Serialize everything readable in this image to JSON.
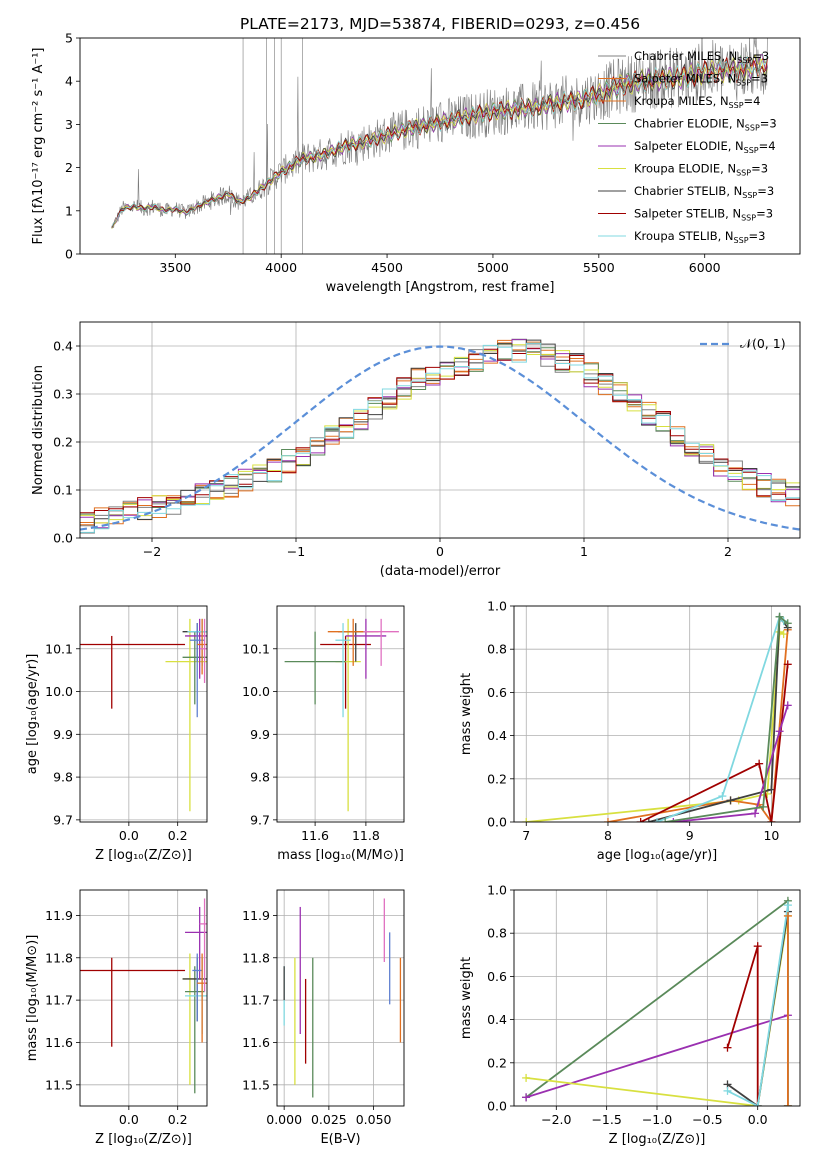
{
  "figure": {
    "title": "PLATE=2173, MJD=53874, FIBERID=0293, z=0.456"
  },
  "colors": {
    "chabrier_miles": "#808080",
    "salpeter_miles": "#e07020",
    "kroupa_miles": "#e07020",
    "chabrier_elodie": "#5a8a5a",
    "salpeter_elodie": "#9a30b0",
    "kroupa_elodie": "#d8e040",
    "chabrier_stelib": "#404040",
    "salpeter_stelib": "#a00000",
    "kroupa_stelib": "#80d8e0",
    "normal": "#5b8fd8",
    "pink": "#e070c0",
    "blue": "#6080d0",
    "grid": "#b0b0b0"
  },
  "chart_data": [
    {
      "id": "spectrum",
      "type": "line",
      "xlabel": "wavelength [Angstrom, rest frame]",
      "ylabel": "Flux [fλ10⁻¹⁷ erg cm⁻² s⁻¹ A⁻¹]",
      "xlim": [
        3050,
        6450
      ],
      "ylim": [
        0,
        5
      ],
      "xticks": [
        3500,
        4000,
        4500,
        5000,
        5500,
        6000
      ],
      "yticks": [
        0,
        1,
        2,
        3,
        4,
        5
      ],
      "grid": false,
      "legend": "right",
      "model_x": [
        3200,
        3250,
        3300,
        3350,
        3400,
        3450,
        3500,
        3550,
        3600,
        3650,
        3700,
        3750,
        3800,
        3850,
        3900,
        3950,
        4000,
        4100,
        4200,
        4300,
        4400,
        4500,
        4600,
        4700,
        4800,
        4900,
        5000,
        5100,
        5200,
        5300,
        5400,
        5500,
        5600,
        5700,
        5800,
        5900,
        6000,
        6100,
        6200,
        6300
      ],
      "model_y": [
        0.6,
        1.05,
        1.1,
        1.05,
        1.1,
        1.0,
        1.05,
        0.95,
        1.1,
        1.2,
        1.3,
        1.4,
        1.2,
        1.3,
        1.5,
        1.7,
        1.9,
        2.2,
        2.3,
        2.5,
        2.6,
        2.75,
        2.9,
        3.0,
        3.1,
        3.2,
        3.3,
        3.35,
        3.4,
        3.5,
        3.55,
        3.7,
        3.9,
        4.0,
        4.05,
        4.1,
        4.2,
        4.25,
        4.3,
        4.4
      ],
      "series": [
        {
          "name": "Chabrier MILES, N_SSP=3",
          "label": "Chabrier MILES, N",
          "sub": "SSP",
          "suffix": "=3"
        },
        {
          "name": "Salpeter MILES, N_SSP=3",
          "label": "Salpeter MILES, N",
          "sub": "SSP",
          "suffix": "=3"
        },
        {
          "name": "Kroupa MILES, N_SSP=4",
          "label": "Kroupa MILES, N",
          "sub": "SSP",
          "suffix": "=4"
        },
        {
          "name": "Chabrier ELODIE, N_SSP=3",
          "label": "Chabrier ELODIE, N",
          "sub": "SSP",
          "suffix": "=3"
        },
        {
          "name": "Salpeter ELODIE, N_SSP=4",
          "label": "Salpeter ELODIE, N",
          "sub": "SSP",
          "suffix": "=4"
        },
        {
          "name": "Kroupa ELODIE, N_SSP=3",
          "label": "Kroupa ELODIE, N",
          "sub": "SSP",
          "suffix": "=3"
        },
        {
          "name": "Chabrier STELIB, N_SSP=3",
          "label": "Chabrier STELIB, N",
          "sub": "SSP",
          "suffix": "=3"
        },
        {
          "name": "Salpeter STELIB, N_SSP=3",
          "label": "Salpeter STELIB, N",
          "sub": "SSP",
          "suffix": "=3"
        },
        {
          "name": "Kroupa STELIB, N_SSP=3",
          "label": "Kroupa STELIB, N",
          "sub": "SSP",
          "suffix": "=3"
        }
      ]
    },
    {
      "id": "residuals",
      "type": "line",
      "xlabel": "(data-model)/error",
      "ylabel": "Normed distribution",
      "xlim": [
        -2.5,
        2.5
      ],
      "ylim": [
        0,
        0.45
      ],
      "xticks": [
        -2,
        -1,
        0,
        1,
        2
      ],
      "yticks": [
        0.0,
        0.1,
        0.2,
        0.3,
        0.4
      ],
      "grid": true,
      "legend": "top-right",
      "legend_label": "𝒩(0, 1)",
      "bin_width": 0.1,
      "base_hist": [
        0.03,
        0.04,
        0.05,
        0.055,
        0.06,
        0.065,
        0.07,
        0.08,
        0.09,
        0.1,
        0.11,
        0.12,
        0.13,
        0.14,
        0.16,
        0.17,
        0.19,
        0.21,
        0.23,
        0.25,
        0.27,
        0.29,
        0.31,
        0.33,
        0.34,
        0.35,
        0.36,
        0.37,
        0.38,
        0.39,
        0.39,
        0.39,
        0.38,
        0.37,
        0.36,
        0.34,
        0.32,
        0.3,
        0.28,
        0.26,
        0.24,
        0.21,
        0.19,
        0.17,
        0.15,
        0.14,
        0.12,
        0.11,
        0.1,
        0.09
      ]
    },
    {
      "id": "age-vs-z",
      "type": "scatter",
      "xlabel": "Z [log₁₀(Z/Z⊙)]",
      "ylabel": "age  [log₁₀(age/yr)]",
      "xlim": [
        -0.2,
        0.32
      ],
      "ylim": [
        9.695,
        10.2
      ],
      "xticks": [
        0.0,
        0.2
      ],
      "yticks": [
        9.7,
        9.8,
        9.9,
        10.0,
        10.1
      ],
      "grid": true,
      "points": [
        {
          "x": -0.07,
          "y": 10.11,
          "xerr": 0.3,
          "ylo": 9.96,
          "yhi": 10.13,
          "color": "salpeter_stelib"
        },
        {
          "x": 0.25,
          "y": 10.07,
          "xerr": 0.1,
          "ylo": 9.72,
          "yhi": 10.17,
          "color": "kroupa_elodie"
        },
        {
          "x": 0.27,
          "y": 10.08,
          "xerr": 0.05,
          "ylo": 9.97,
          "yhi": 10.14,
          "color": "chabrier_elodie"
        },
        {
          "x": 0.28,
          "y": 10.14,
          "xerr": 0.06,
          "ylo": 10.07,
          "yhi": 10.16,
          "color": "chabrier_stelib"
        },
        {
          "x": 0.29,
          "y": 10.13,
          "xerr": 0.06,
          "ylo": 10.03,
          "yhi": 10.17,
          "color": "salpeter_elodie"
        },
        {
          "x": 0.3,
          "y": 10.14,
          "xerr": 0.06,
          "ylo": 10.06,
          "yhi": 10.17,
          "color": "kroupa_stelib"
        },
        {
          "x": 0.28,
          "y": 10.12,
          "xerr": 0.03,
          "ylo": 9.94,
          "yhi": 10.16,
          "color": "blue"
        },
        {
          "x": 0.3,
          "y": 10.11,
          "xerr": 0.02,
          "ylo": 10.04,
          "yhi": 10.17,
          "color": "salpeter_miles"
        },
        {
          "x": 0.31,
          "y": 10.1,
          "xerr": 0.02,
          "ylo": 10.02,
          "yhi": 10.17,
          "color": "pink"
        }
      ]
    },
    {
      "id": "age-vs-mass",
      "type": "scatter",
      "xlabel": "mass [log₁₀(M/M⊙)]",
      "ylabel": "",
      "xlim": [
        11.45,
        11.95
      ],
      "ylim": [
        9.695,
        10.2
      ],
      "xticks": [
        11.6,
        11.8
      ],
      "yticks": [
        9.7,
        9.8,
        9.9,
        10.0,
        10.1
      ],
      "grid": true,
      "points": [
        {
          "x": 11.72,
          "y": 10.11,
          "xerr": 0.1,
          "ylo": 9.96,
          "yhi": 10.13,
          "color": "salpeter_stelib"
        },
        {
          "x": 11.73,
          "y": 10.07,
          "xerr": 0.05,
          "ylo": 9.72,
          "yhi": 10.17,
          "color": "kroupa_elodie"
        },
        {
          "x": 11.6,
          "y": 10.07,
          "xerr": 0.12,
          "ylo": 9.97,
          "yhi": 10.14,
          "color": "chabrier_elodie"
        },
        {
          "x": 11.76,
          "y": 10.14,
          "xerr": 0.07,
          "ylo": 10.07,
          "yhi": 10.16,
          "color": "chabrier_stelib"
        },
        {
          "x": 11.8,
          "y": 10.13,
          "xerr": 0.08,
          "ylo": 10.03,
          "yhi": 10.17,
          "color": "salpeter_elodie"
        },
        {
          "x": 11.75,
          "y": 10.14,
          "xerr": 0.1,
          "ylo": 10.06,
          "yhi": 10.17,
          "color": "salpeter_miles"
        },
        {
          "x": 11.86,
          "y": 10.14,
          "xerr": 0.07,
          "ylo": 10.06,
          "yhi": 10.17,
          "color": "pink"
        },
        {
          "x": 11.71,
          "y": 10.12,
          "xerr": 0.03,
          "ylo": 9.94,
          "yhi": 10.16,
          "color": "kroupa_stelib"
        }
      ]
    },
    {
      "id": "weight-vs-age",
      "type": "line",
      "xlabel": "age  [log₁₀(age/yr)]",
      "ylabel": "mass weight",
      "xlim": [
        6.85,
        10.35
      ],
      "ylim": [
        0,
        1
      ],
      "xticks": [
        7,
        8,
        9,
        10
      ],
      "yticks": [
        0.0,
        0.2,
        0.4,
        0.6,
        0.8,
        1.0
      ],
      "grid": true,
      "series": [
        {
          "color": "kroupa_elodie",
          "x": [
            7.0,
            9.6,
            9.95,
            10.1,
            10.15
          ],
          "y": [
            0.0,
            0.1,
            0.13,
            0.88,
            0.87
          ]
        },
        {
          "color": "salpeter_miles",
          "x": [
            8.0,
            9.5,
            9.85,
            10.0,
            10.2
          ],
          "y": [
            0.0,
            0.1,
            0.08,
            0.0,
            0.89
          ]
        },
        {
          "color": "chabrier_stelib",
          "x": [
            8.5,
            9.5,
            10.0,
            10.1,
            10.2
          ],
          "y": [
            0.0,
            0.1,
            0.15,
            0.95,
            0.9
          ]
        },
        {
          "color": "salpeter_stelib",
          "x": [
            8.4,
            9.85,
            10.0,
            10.2
          ],
          "y": [
            0.0,
            0.27,
            0.0,
            0.73
          ]
        },
        {
          "color": "salpeter_elodie",
          "x": [
            8.8,
            9.8,
            10.1,
            10.2
          ],
          "y": [
            0.0,
            0.04,
            0.42,
            0.54
          ]
        },
        {
          "color": "kroupa_stelib",
          "x": [
            8.6,
            9.4,
            10.1,
            10.15
          ],
          "y": [
            0.0,
            0.12,
            0.95,
            0.93
          ]
        },
        {
          "color": "chabrier_elodie",
          "x": [
            8.7,
            9.9,
            10.1,
            10.2
          ],
          "y": [
            0.0,
            0.07,
            0.95,
            0.92
          ]
        }
      ]
    },
    {
      "id": "mass-vs-z",
      "type": "scatter",
      "xlabel": "Z [log₁₀(Z/Z⊙)]",
      "ylabel": "mass [log₁₀(M/M⊙)]",
      "xlim": [
        -0.2,
        0.32
      ],
      "ylim": [
        11.45,
        11.96
      ],
      "xticks": [
        0.0,
        0.2
      ],
      "yticks": [
        11.5,
        11.6,
        11.7,
        11.8,
        11.9
      ],
      "grid": true,
      "points": [
        {
          "x": -0.07,
          "y": 11.77,
          "xerr": 0.3,
          "ylo": 11.59,
          "yhi": 11.8,
          "color": "salpeter_stelib"
        },
        {
          "x": 0.25,
          "y": 11.75,
          "xerr": 0.03,
          "ylo": 11.5,
          "yhi": 11.81,
          "color": "kroupa_elodie"
        },
        {
          "x": 0.27,
          "y": 11.72,
          "xerr": 0.04,
          "ylo": 11.48,
          "yhi": 11.78,
          "color": "chabrier_elodie"
        },
        {
          "x": 0.28,
          "y": 11.75,
          "xerr": 0.06,
          "ylo": 11.65,
          "yhi": 11.8,
          "color": "chabrier_stelib"
        },
        {
          "x": 0.29,
          "y": 11.86,
          "xerr": 0.06,
          "ylo": 11.75,
          "yhi": 11.92,
          "color": "salpeter_elodie"
        },
        {
          "x": 0.3,
          "y": 11.71,
          "xerr": 0.07,
          "ylo": 11.62,
          "yhi": 11.8,
          "color": "kroupa_stelib"
        },
        {
          "x": 0.28,
          "y": 11.77,
          "xerr": 0.02,
          "ylo": 11.65,
          "yhi": 11.81,
          "color": "blue"
        },
        {
          "x": 0.3,
          "y": 11.74,
          "xerr": 0.02,
          "ylo": 11.6,
          "yhi": 11.81,
          "color": "salpeter_miles"
        },
        {
          "x": 0.31,
          "y": 11.88,
          "xerr": 0.02,
          "ylo": 11.72,
          "yhi": 11.94,
          "color": "pink"
        }
      ]
    },
    {
      "id": "mass-vs-ebv",
      "type": "scatter",
      "xlabel": "E(B-V)",
      "ylabel": "",
      "xlim": [
        -0.004,
        0.067
      ],
      "ylim": [
        11.45,
        11.96
      ],
      "xticks": [
        0.0,
        0.025,
        0.05
      ],
      "tick_labels": [
        "0.000",
        "0.025",
        "0.050"
      ],
      "yticks": [
        11.5,
        11.6,
        11.7,
        11.8,
        11.9
      ],
      "grid": true,
      "points": [
        {
          "x": 0.0,
          "ylo": 11.64,
          "yhi": 11.78,
          "color": "kroupa_stelib"
        },
        {
          "x": 0.0,
          "ylo": 11.7,
          "yhi": 11.78,
          "color": "chabrier_stelib"
        },
        {
          "x": 0.006,
          "ylo": 11.5,
          "yhi": 11.8,
          "color": "kroupa_elodie"
        },
        {
          "x": 0.009,
          "ylo": 11.62,
          "yhi": 11.92,
          "color": "salpeter_elodie"
        },
        {
          "x": 0.012,
          "ylo": 11.55,
          "yhi": 11.75,
          "color": "salpeter_stelib"
        },
        {
          "x": 0.016,
          "ylo": 11.47,
          "yhi": 11.8,
          "color": "chabrier_elodie"
        },
        {
          "x": 0.056,
          "ylo": 11.79,
          "yhi": 11.94,
          "color": "pink"
        },
        {
          "x": 0.059,
          "ylo": 11.69,
          "yhi": 11.86,
          "color": "blue"
        },
        {
          "x": 0.065,
          "ylo": 11.6,
          "yhi": 11.8,
          "color": "salpeter_miles"
        }
      ]
    },
    {
      "id": "weight-vs-z",
      "type": "line",
      "xlabel": "Z [log₁₀(Z/Z⊙)]",
      "ylabel": "mass weight",
      "xlim": [
        -2.42,
        0.42
      ],
      "ylim": [
        0,
        1
      ],
      "xticks": [
        -2.0,
        -1.5,
        -1.0,
        -0.5,
        0.0
      ],
      "yticks": [
        0.0,
        0.2,
        0.4,
        0.6,
        0.8,
        1.0
      ],
      "grid": true,
      "series": [
        {
          "color": "chabrier_elodie",
          "x": [
            -2.3,
            0.3,
            0.3
          ],
          "y": [
            0.04,
            0.95,
            0.0
          ]
        },
        {
          "color": "salpeter_elodie",
          "x": [
            -2.3,
            0.3,
            0.3
          ],
          "y": [
            0.04,
            0.42,
            0.0
          ]
        },
        {
          "color": "kroupa_elodie",
          "x": [
            -2.3,
            0.0,
            0.3,
            0.3
          ],
          "y": [
            0.13,
            0.0,
            0.88,
            0.0
          ]
        },
        {
          "color": "salpeter_stelib",
          "x": [
            -0.3,
            0.0,
            0.0
          ],
          "y": [
            0.27,
            0.74,
            0.0
          ]
        },
        {
          "color": "chabrier_stelib",
          "x": [
            -0.3,
            0.0,
            0.3,
            0.3
          ],
          "y": [
            0.1,
            0.0,
            0.9,
            0.0
          ]
        },
        {
          "color": "kroupa_stelib",
          "x": [
            -0.3,
            0.0,
            0.3,
            0.3
          ],
          "y": [
            0.07,
            0.0,
            0.93,
            0.0
          ]
        },
        {
          "color": "salpeter_miles",
          "x": [
            0.3,
            0.3
          ],
          "y": [
            0.0,
            0.88
          ]
        }
      ]
    }
  ]
}
